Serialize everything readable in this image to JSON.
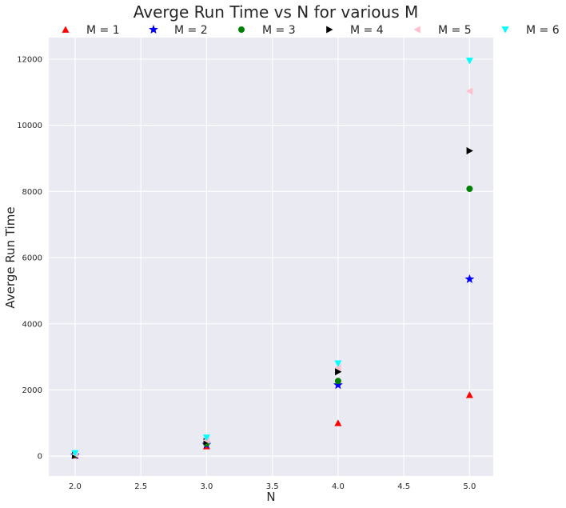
{
  "chart_data": {
    "type": "scatter",
    "title": "Averge Run Time vs N for various M",
    "xlabel": "N",
    "ylabel": "Averge Run Time",
    "xlim": [
      1.8,
      5.18
    ],
    "ylim": [
      -600,
      12650
    ],
    "xticks": [
      2.0,
      2.5,
      3.0,
      3.5,
      4.0,
      4.5,
      5.0
    ],
    "xtick_labels": [
      "2.0",
      "2.5",
      "3.0",
      "3.5",
      "4.0",
      "4.5",
      "5.0"
    ],
    "yticks": [
      0,
      2000,
      4000,
      6000,
      8000,
      10000,
      12000
    ],
    "ytick_labels": [
      "0",
      "2000",
      "4000",
      "6000",
      "8000",
      "10000",
      "12000"
    ],
    "grid": true,
    "legend_position": "top",
    "background": "#eaeaf2",
    "series": [
      {
        "name": "M = 1",
        "marker": "triangle-up",
        "color": "#ff0000",
        "x": [
          2,
          3,
          4,
          5
        ],
        "y": [
          20,
          300,
          1000,
          1850
        ]
      },
      {
        "name": "M = 2",
        "marker": "star",
        "color": "#0000ff",
        "x": [
          2,
          3,
          4,
          5
        ],
        "y": [
          30,
          350,
          2150,
          5350
        ]
      },
      {
        "name": "M = 3",
        "marker": "circle",
        "color": "#008000",
        "x": [
          2,
          3,
          4,
          5
        ],
        "y": [
          40,
          380,
          2270,
          8080
        ]
      },
      {
        "name": "M = 4",
        "marker": "triangle-right",
        "color": "#000000",
        "x": [
          2,
          3,
          4,
          5
        ],
        "y": [
          30,
          440,
          2550,
          9230
        ]
      },
      {
        "name": "M = 5",
        "marker": "triangle-left",
        "color": "#ffc0cb",
        "x": [
          2,
          3,
          4,
          5
        ],
        "y": [
          60,
          480,
          2680,
          11030
        ]
      },
      {
        "name": "M = 6",
        "marker": "triangle-down",
        "color": "#00ffff",
        "x": [
          2,
          3,
          4,
          5
        ],
        "y": [
          90,
          560,
          2800,
          11950
        ]
      }
    ]
  }
}
